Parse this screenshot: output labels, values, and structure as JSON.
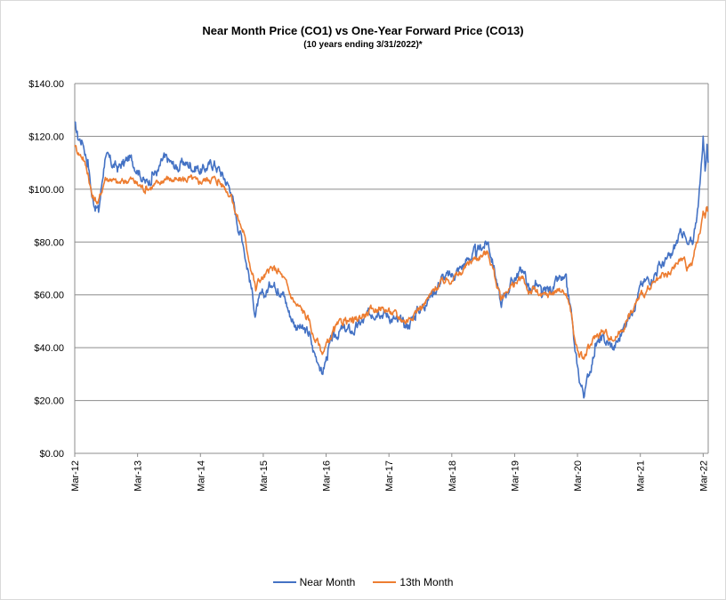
{
  "chart_data": {
    "type": "line",
    "title": "Near Month Price (CO1) vs One-Year Forward Price  (CO13)",
    "subtitle": "(10 years ending  3/31/2022)*",
    "xlabel": "",
    "ylabel": "",
    "ylim": [
      0,
      140
    ],
    "yticks": [
      0,
      20,
      40,
      60,
      80,
      100,
      120,
      140
    ],
    "ytick_labels": [
      "$0.00",
      "$20.00",
      "$40.00",
      "$60.00",
      "$80.00",
      "$100.00",
      "$120.00",
      "$140.00"
    ],
    "xlim": [
      2012.17,
      2022.25
    ],
    "xticks": [
      2012.17,
      2013.17,
      2014.17,
      2015.17,
      2016.17,
      2017.17,
      2018.17,
      2019.17,
      2020.17,
      2021.17,
      2022.17
    ],
    "xtick_labels": [
      "Mar-12",
      "Mar-13",
      "Mar-14",
      "Mar-15",
      "Mar-16",
      "Mar-17",
      "Mar-18",
      "Mar-19",
      "Mar-20",
      "Mar-21",
      "Mar-22"
    ],
    "grid": true,
    "legend_position": "bottom",
    "series": [
      {
        "name": "Near Month",
        "color": "#4472C4",
        "x": [
          2012.17,
          2012.22,
          2012.3,
          2012.38,
          2012.45,
          2012.55,
          2012.65,
          2012.75,
          2012.85,
          2012.95,
          2013.05,
          2013.17,
          2013.3,
          2013.4,
          2013.5,
          2013.6,
          2013.7,
          2013.8,
          2013.9,
          2014.0,
          2014.1,
          2014.2,
          2014.3,
          2014.4,
          2014.45,
          2014.55,
          2014.65,
          2014.75,
          2014.85,
          2014.92,
          2015.0,
          2015.05,
          2015.1,
          2015.2,
          2015.3,
          2015.4,
          2015.5,
          2015.6,
          2015.7,
          2015.8,
          2015.9,
          2015.97,
          2016.05,
          2016.1,
          2016.2,
          2016.3,
          2016.45,
          2016.6,
          2016.75,
          2016.9,
          2017.0,
          2017.17,
          2017.3,
          2017.45,
          2017.6,
          2017.75,
          2017.9,
          2018.0,
          2018.17,
          2018.3,
          2018.45,
          2018.55,
          2018.65,
          2018.75,
          2018.85,
          2018.95,
          2019.05,
          2019.17,
          2019.3,
          2019.4,
          2019.5,
          2019.6,
          2019.7,
          2019.8,
          2019.9,
          2020.0,
          2020.08,
          2020.13,
          2020.2,
          2020.28,
          2020.35,
          2020.45,
          2020.55,
          2020.65,
          2020.75,
          2020.85,
          2020.95,
          2021.05,
          2021.17,
          2021.3,
          2021.45,
          2021.55,
          2021.65,
          2021.75,
          2021.85,
          2021.92,
          2022.0,
          2022.05,
          2022.1,
          2022.13,
          2022.17,
          2022.2,
          2022.23,
          2022.25
        ],
        "y": [
          124,
          120,
          118,
          110,
          96,
          92,
          112,
          110,
          108,
          110,
          112,
          108,
          102,
          105,
          107,
          112,
          110,
          108,
          110,
          109,
          108,
          107,
          109,
          110,
          108,
          104,
          100,
          88,
          80,
          70,
          60,
          52,
          58,
          60,
          65,
          63,
          60,
          52,
          48,
          47,
          45,
          38,
          35,
          30,
          38,
          45,
          47,
          46,
          50,
          53,
          55,
          52,
          50,
          48,
          53,
          57,
          62,
          66,
          67,
          70,
          74,
          76,
          78,
          80,
          70,
          56,
          62,
          66,
          70,
          62,
          64,
          60,
          62,
          63,
          66,
          64,
          52,
          38,
          28,
          22,
          30,
          40,
          43,
          42,
          40,
          44,
          50,
          55,
          63,
          66,
          70,
          72,
          74,
          80,
          84,
          78,
          80,
          88,
          95,
          105,
          120,
          108,
          116,
          110
        ]
      },
      {
        "name": "13th Month",
        "color": "#ED7D31",
        "x": [
          2012.17,
          2012.22,
          2012.3,
          2012.38,
          2012.45,
          2012.55,
          2012.65,
          2012.75,
          2012.85,
          2012.95,
          2013.05,
          2013.17,
          2013.3,
          2013.4,
          2013.5,
          2013.6,
          2013.7,
          2013.8,
          2013.9,
          2014.0,
          2014.1,
          2014.2,
          2014.3,
          2014.4,
          2014.45,
          2014.55,
          2014.65,
          2014.75,
          2014.85,
          2014.92,
          2015.0,
          2015.05,
          2015.1,
          2015.2,
          2015.3,
          2015.4,
          2015.5,
          2015.6,
          2015.7,
          2015.8,
          2015.9,
          2015.97,
          2016.05,
          2016.1,
          2016.2,
          2016.3,
          2016.45,
          2016.6,
          2016.75,
          2016.9,
          2017.0,
          2017.17,
          2017.3,
          2017.45,
          2017.6,
          2017.75,
          2017.9,
          2018.0,
          2018.17,
          2018.3,
          2018.45,
          2018.55,
          2018.65,
          2018.75,
          2018.85,
          2018.95,
          2019.05,
          2019.17,
          2019.3,
          2019.4,
          2019.5,
          2019.6,
          2019.7,
          2019.8,
          2019.9,
          2020.0,
          2020.08,
          2020.13,
          2020.2,
          2020.28,
          2020.35,
          2020.45,
          2020.55,
          2020.65,
          2020.75,
          2020.85,
          2020.95,
          2021.05,
          2021.17,
          2021.3,
          2021.45,
          2021.55,
          2021.65,
          2021.75,
          2021.85,
          2021.92,
          2022.0,
          2022.05,
          2022.1,
          2022.13,
          2022.17,
          2022.2,
          2022.23,
          2022.25
        ],
        "y": [
          117,
          114,
          112,
          106,
          97,
          95,
          104,
          104,
          102,
          103,
          104,
          102,
          100,
          101,
          102,
          104,
          104,
          103,
          104,
          104,
          103,
          103,
          104,
          104,
          103,
          101,
          98,
          90,
          84,
          76,
          68,
          62,
          66,
          67,
          70,
          69,
          66,
          60,
          56,
          54,
          50,
          44,
          42,
          38,
          42,
          47,
          50,
          50,
          52,
          54,
          55,
          54,
          52,
          50,
          54,
          57,
          62,
          65,
          66,
          68,
          72,
          74,
          75,
          76,
          68,
          58,
          62,
          64,
          66,
          61,
          62,
          59,
          60,
          61,
          62,
          60,
          52,
          42,
          37,
          36,
          40,
          44,
          46,
          45,
          43,
          46,
          50,
          54,
          60,
          62,
          65,
          67,
          68,
          72,
          74,
          70,
          72,
          78,
          82,
          85,
          92,
          90,
          94,
          92
        ]
      }
    ]
  }
}
